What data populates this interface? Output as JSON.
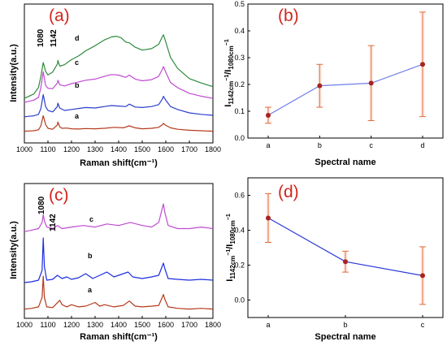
{
  "chart_data": [
    {
      "panel": "(a)",
      "type": "line",
      "xlabel": "Raman shift(cm⁻¹)",
      "ylabel": "Intensity(a.u.)",
      "xlim": [
        1000,
        1800
      ],
      "xticks": [
        "1000",
        "1100",
        "1200",
        "1300",
        "1400",
        "1500",
        "1600",
        "1700",
        "1800"
      ],
      "peak_labels": [
        "1080",
        "1142"
      ],
      "series": [
        {
          "name": "a",
          "color": "#b5391c",
          "x": [
            1000,
            1020,
            1040,
            1060,
            1070,
            1080,
            1090,
            1100,
            1120,
            1140,
            1142,
            1150,
            1160,
            1180,
            1200,
            1230,
            1260,
            1300,
            1340,
            1380,
            1420,
            1445,
            1470,
            1500,
            1540,
            1570,
            1585,
            1590,
            1600,
            1620,
            1650,
            1700,
            1750,
            1800
          ],
          "y": [
            0.08,
            0.09,
            0.1,
            0.14,
            0.3,
            0.72,
            0.36,
            0.2,
            0.16,
            0.34,
            0.46,
            0.26,
            0.2,
            0.21,
            0.18,
            0.17,
            0.19,
            0.18,
            0.2,
            0.24,
            0.22,
            0.3,
            0.22,
            0.18,
            0.2,
            0.24,
            0.34,
            0.4,
            0.32,
            0.22,
            0.16,
            0.12,
            0.1,
            0.08
          ]
        },
        {
          "name": "b",
          "color": "#2b3fcc",
          "x": [
            1000,
            1020,
            1040,
            1060,
            1070,
            1080,
            1090,
            1100,
            1120,
            1140,
            1142,
            1150,
            1170,
            1200,
            1230,
            1260,
            1300,
            1340,
            1370,
            1400,
            1430,
            1445,
            1470,
            1500,
            1540,
            1570,
            1585,
            1590,
            1600,
            1620,
            1650,
            1700,
            1750,
            1800
          ],
          "y": [
            0.14,
            0.16,
            0.18,
            0.24,
            0.48,
            1.05,
            0.56,
            0.4,
            0.34,
            0.56,
            0.7,
            0.5,
            0.4,
            0.44,
            0.48,
            0.52,
            0.5,
            0.56,
            0.6,
            0.58,
            0.56,
            0.66,
            0.54,
            0.52,
            0.56,
            0.64,
            0.86,
            0.98,
            0.82,
            0.56,
            0.44,
            0.3,
            0.24,
            0.2
          ]
        },
        {
          "name": "c",
          "color": "#c04bd2",
          "x": [
            1000,
            1020,
            1040,
            1060,
            1070,
            1080,
            1090,
            1100,
            1120,
            1140,
            1142,
            1150,
            1170,
            1200,
            1230,
            1260,
            1300,
            1340,
            1370,
            1400,
            1430,
            1445,
            1470,
            1500,
            1540,
            1570,
            1585,
            1590,
            1600,
            1620,
            1650,
            1700,
            1750,
            1800
          ],
          "y": [
            0.34,
            0.38,
            0.42,
            0.52,
            0.86,
            1.42,
            0.94,
            0.84,
            0.82,
            1.02,
            1.12,
            0.96,
            0.92,
            1.0,
            1.06,
            1.12,
            1.16,
            1.26,
            1.32,
            1.3,
            1.22,
            1.3,
            1.16,
            1.1,
            1.14,
            1.26,
            1.5,
            1.6,
            1.4,
            1.04,
            0.86,
            0.66,
            0.56,
            0.48
          ]
        },
        {
          "name": "d",
          "color": "#2d8b3c",
          "x": [
            1000,
            1020,
            1040,
            1060,
            1070,
            1080,
            1090,
            1100,
            1120,
            1140,
            1142,
            1150,
            1170,
            1200,
            1230,
            1260,
            1300,
            1340,
            1370,
            1390,
            1410,
            1430,
            1445,
            1470,
            1500,
            1540,
            1570,
            1585,
            1590,
            1600,
            1620,
            1650,
            1700,
            1750,
            1800
          ],
          "y": [
            0.42,
            0.48,
            0.54,
            0.72,
            1.02,
            1.4,
            1.16,
            1.06,
            1.14,
            1.36,
            1.46,
            1.3,
            1.34,
            1.48,
            1.58,
            1.72,
            1.86,
            2.02,
            2.1,
            2.12,
            2.08,
            1.96,
            1.94,
            1.82,
            1.74,
            1.78,
            1.9,
            2.1,
            2.16,
            1.96,
            1.54,
            1.24,
            0.96,
            0.84,
            0.74
          ]
        }
      ]
    },
    {
      "panel": "(b)",
      "type": "scatter",
      "xlabel": "Spectral name",
      "ylabel_main": "I",
      "ylabel_sub1": "1142cm",
      "ylabel_sup1": "−1",
      "ylabel_mid": "/I",
      "ylabel_sub2": "1080cm",
      "ylabel_sup2": "−1",
      "categories": [
        "a",
        "b",
        "c",
        "d"
      ],
      "values": [
        0.085,
        0.195,
        0.205,
        0.275
      ],
      "errors": [
        0.03,
        0.08,
        0.14,
        0.195
      ],
      "ylim": [
        0.0,
        0.5
      ],
      "yticks": [
        "0.0",
        "0.1",
        "0.2",
        "0.3",
        "0.4",
        "0.5"
      ],
      "line_color": "#6f7ee8",
      "marker_color": "#a8231e",
      "error_color": "#e06a3a"
    },
    {
      "panel": "(c)",
      "type": "line",
      "xlabel": "Raman shift(cm⁻¹)",
      "ylabel": "Intensity(a.u.)",
      "xlim": [
        1000,
        1800
      ],
      "xticks": [
        "1000",
        "1100",
        "1200",
        "1300",
        "1400",
        "1500",
        "1600",
        "1700",
        "1800"
      ],
      "peak_labels": [
        "1080",
        "1142"
      ],
      "series": [
        {
          "name": "a",
          "color": "#b5391c",
          "x": [
            1000,
            1030,
            1060,
            1075,
            1080,
            1085,
            1095,
            1120,
            1150,
            1160,
            1180,
            1200,
            1230,
            1260,
            1300,
            1320,
            1340,
            1380,
            1420,
            1445,
            1470,
            1500,
            1540,
            1570,
            1585,
            1590,
            1595,
            1610,
            1650,
            1700,
            1750,
            1800
          ],
          "y": [
            0.12,
            0.14,
            0.18,
            0.44,
            1.02,
            0.44,
            0.18,
            0.16,
            0.36,
            0.24,
            0.18,
            0.24,
            0.18,
            0.2,
            0.3,
            0.2,
            0.24,
            0.18,
            0.22,
            0.34,
            0.2,
            0.18,
            0.2,
            0.22,
            0.44,
            0.52,
            0.4,
            0.18,
            0.14,
            0.12,
            0.14,
            0.12
          ]
        },
        {
          "name": "b",
          "color": "#1d2ee0",
          "x": [
            1000,
            1030,
            1060,
            1075,
            1080,
            1085,
            1095,
            1120,
            1140,
            1160,
            1180,
            1200,
            1230,
            1260,
            1290,
            1320,
            1350,
            1380,
            1410,
            1440,
            1460,
            1500,
            1540,
            1570,
            1585,
            1590,
            1595,
            1610,
            1650,
            1700,
            1750,
            1800
          ],
          "y": [
            0.6,
            0.62,
            0.66,
            0.9,
            1.7,
            1.0,
            0.66,
            0.68,
            0.78,
            0.7,
            0.74,
            0.68,
            0.72,
            0.82,
            0.7,
            0.78,
            0.86,
            0.74,
            0.8,
            0.86,
            0.74,
            0.7,
            0.74,
            0.78,
            1.0,
            1.08,
            0.96,
            0.7,
            0.68,
            0.66,
            0.68,
            0.66
          ]
        },
        {
          "name": "c",
          "color": "#c04bd2",
          "x": [
            1000,
            1030,
            1060,
            1075,
            1080,
            1085,
            1095,
            1120,
            1140,
            1160,
            1200,
            1250,
            1300,
            1350,
            1400,
            1450,
            1500,
            1540,
            1570,
            1585,
            1590,
            1595,
            1610,
            1650,
            1700,
            1750,
            1800
          ],
          "y": [
            1.06,
            1.08,
            1.1,
            1.18,
            1.28,
            1.2,
            1.12,
            1.1,
            1.14,
            1.1,
            1.12,
            1.14,
            1.12,
            1.16,
            1.14,
            1.18,
            1.14,
            1.12,
            1.18,
            1.36,
            1.42,
            1.32,
            1.14,
            1.1,
            1.1,
            1.12,
            1.1
          ]
        }
      ]
    },
    {
      "panel": "(d)",
      "type": "scatter",
      "xlabel": "Spectral name",
      "ylabel_main": "I",
      "ylabel_sub1": "1142cm",
      "ylabel_sup1": "−1",
      "ylabel_mid": "/I",
      "ylabel_sub2": "1080cm",
      "ylabel_sup2": "−1",
      "categories": [
        "a",
        "b",
        "c"
      ],
      "values": [
        0.47,
        0.22,
        0.14
      ],
      "errors": [
        0.14,
        0.06,
        0.165
      ],
      "ylim": [
        -0.1,
        0.7
      ],
      "yticks": [
        "0.0",
        "0.2",
        "0.4",
        "0.6"
      ],
      "line_color": "#2a3ad8",
      "marker_color": "#a8231e",
      "error_color": "#e06a3a"
    }
  ]
}
